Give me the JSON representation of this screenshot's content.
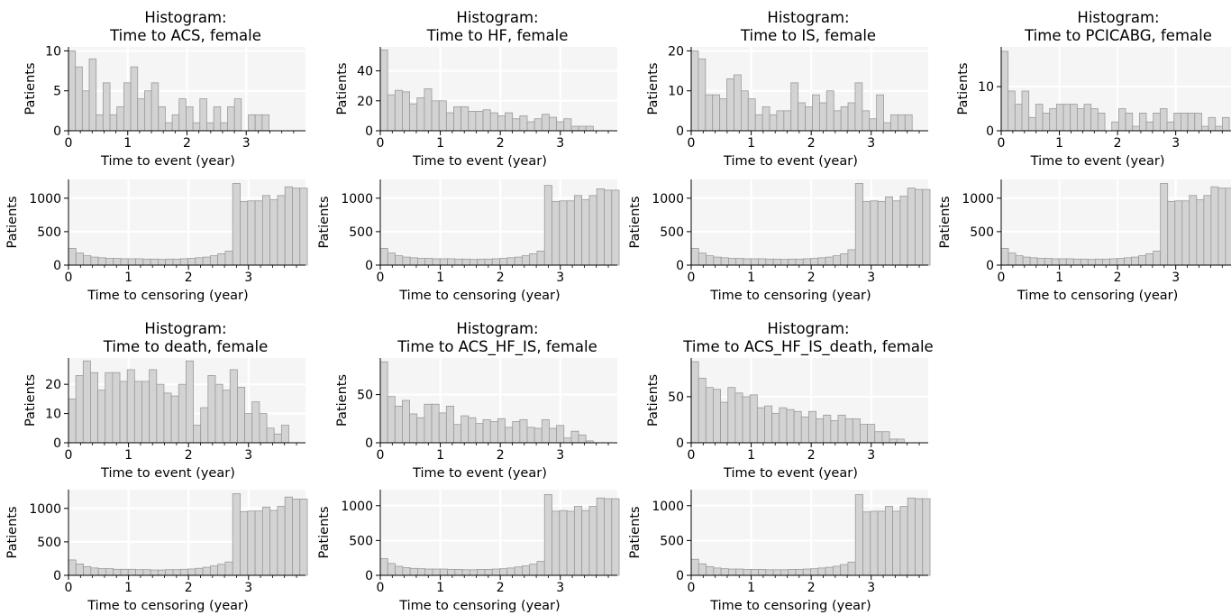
{
  "chart_data": [
    {
      "type": "bar",
      "title_line1": "Histogram:",
      "title_line2": "Time to ACS, female",
      "xlabel": "Time to event (year)",
      "ylabel": "Patients",
      "xlim": [
        0,
        4
      ],
      "ylim": [
        0,
        10.5
      ],
      "xticks": [
        "0",
        "1",
        "2",
        "3"
      ],
      "yticks": [
        "0",
        "5",
        "10"
      ],
      "bin_width": 0.1167,
      "values": [
        10,
        8,
        5,
        9,
        2,
        6,
        2,
        3,
        6,
        8,
        4,
        5,
        6,
        3,
        1,
        2,
        4,
        3,
        1,
        4,
        1,
        3,
        1,
        3,
        4,
        0,
        2,
        2,
        2,
        0,
        0,
        0,
        0,
        0
      ]
    },
    {
      "type": "bar",
      "title_line1": "",
      "title_line2": "",
      "xlabel": "Time to censoring (year)",
      "ylabel": "Patients",
      "xlim": [
        0,
        3.95
      ],
      "ylim": [
        0,
        1280
      ],
      "xticks": [
        "0",
        "1",
        "2",
        "3"
      ],
      "yticks": [
        "0",
        "500",
        "1000"
      ],
      "bin_width": 0.1244,
      "values": [
        250,
        180,
        140,
        120,
        110,
        100,
        100,
        95,
        95,
        95,
        90,
        90,
        85,
        90,
        90,
        95,
        100,
        110,
        120,
        140,
        170,
        210,
        1220,
        950,
        960,
        960,
        1040,
        980,
        1040,
        1170,
        1150,
        1150
      ]
    },
    {
      "type": "bar",
      "title_line1": "Histogram:",
      "title_line2": "Time to HF, female",
      "xlabel": "Time to event (year)",
      "ylabel": "Patients",
      "xlim": [
        0,
        3.95
      ],
      "ylim": [
        0,
        56
      ],
      "xticks": [
        "0",
        "1",
        "2",
        "3"
      ],
      "yticks": [
        "0",
        "20",
        "40"
      ],
      "bin_width": 0.1224,
      "values": [
        54,
        24,
        27,
        26,
        18,
        22,
        28,
        20,
        20,
        12,
        16,
        16,
        13,
        13,
        14,
        12,
        10,
        12,
        8,
        10,
        6,
        8,
        11,
        9,
        6,
        8,
        3,
        3,
        3
      ]
    },
    {
      "type": "bar",
      "title_line1": "",
      "title_line2": "",
      "xlabel": "Time to censoring (year)",
      "ylabel": "Patients",
      "xlim": [
        0,
        3.95
      ],
      "ylim": [
        0,
        1280
      ],
      "xticks": [
        "0",
        "1",
        "2",
        "3"
      ],
      "yticks": [
        "0",
        "500",
        "1000"
      ],
      "bin_width": 0.1244,
      "values": [
        250,
        180,
        140,
        120,
        110,
        100,
        100,
        95,
        95,
        95,
        90,
        90,
        85,
        90,
        90,
        95,
        100,
        110,
        120,
        140,
        170,
        210,
        1190,
        950,
        960,
        960,
        1040,
        980,
        1040,
        1140,
        1120,
        1120
      ]
    },
    {
      "type": "bar",
      "title_line1": "Histogram:",
      "title_line2": "Time to IS, female",
      "xlabel": "Time to event (year)",
      "ylabel": "Patients",
      "xlim": [
        0,
        3.95
      ],
      "ylim": [
        0,
        21
      ],
      "xticks": [
        "0",
        "1",
        "2",
        "3"
      ],
      "yticks": [
        "0",
        "10",
        "20"
      ],
      "bin_width": 0.1188,
      "values": [
        20,
        18,
        9,
        9,
        8,
        13,
        14,
        10,
        8,
        4,
        6,
        4,
        5,
        5,
        12,
        7,
        6,
        9,
        7,
        10,
        5,
        6,
        7,
        12,
        5,
        3,
        9,
        2,
        4,
        4,
        4
      ]
    },
    {
      "type": "bar",
      "title_line1": "",
      "title_line2": "",
      "xlabel": "Time to censoring (year)",
      "ylabel": "Patients",
      "xlim": [
        0,
        3.95
      ],
      "ylim": [
        0,
        1280
      ],
      "xticks": [
        "0",
        "1",
        "2",
        "3"
      ],
      "yticks": [
        "0",
        "500",
        "1000"
      ],
      "bin_width": 0.1244,
      "values": [
        250,
        180,
        140,
        120,
        110,
        100,
        100,
        95,
        95,
        95,
        90,
        90,
        85,
        90,
        90,
        95,
        100,
        110,
        120,
        140,
        170,
        230,
        1220,
        950,
        960,
        950,
        1020,
        960,
        1030,
        1150,
        1130,
        1130
      ]
    },
    {
      "type": "bar",
      "title_line1": "Histogram:",
      "title_line2": "Time to PCICABG, female",
      "xlabel": "Time to event (year)",
      "ylabel": "Patients",
      "xlim": [
        0,
        3.95
      ],
      "ylim": [
        0,
        19
      ],
      "xticks": [
        "0",
        "1",
        "2",
        "3"
      ],
      "yticks": [
        "0",
        "10"
      ],
      "bin_width": 0.1188,
      "values": [
        18,
        9,
        6,
        9,
        3,
        6,
        4,
        5,
        6,
        6,
        6,
        5,
        6,
        5,
        4,
        0,
        2,
        5,
        4,
        1,
        4,
        2,
        4,
        5,
        2,
        4,
        4,
        4,
        4,
        1,
        3,
        1,
        3
      ]
    },
    {
      "type": "bar",
      "title_line1": "",
      "title_line2": "",
      "xlabel": "Time to censoring (year)",
      "ylabel": "Patients",
      "xlim": [
        0,
        3.95
      ],
      "ylim": [
        0,
        1280
      ],
      "xticks": [
        "0",
        "1",
        "2",
        "3"
      ],
      "yticks": [
        "0",
        "500",
        "1000"
      ],
      "bin_width": 0.1244,
      "values": [
        250,
        180,
        140,
        120,
        110,
        100,
        100,
        95,
        95,
        95,
        90,
        90,
        85,
        90,
        90,
        95,
        100,
        110,
        120,
        140,
        170,
        210,
        1220,
        950,
        960,
        960,
        1040,
        980,
        1040,
        1170,
        1150,
        1150
      ]
    },
    {
      "type": "bar",
      "title_line1": "Histogram:",
      "title_line2": "Time to death, female",
      "xlabel": "Time to event (year)",
      "ylabel": "Patients",
      "xlim": [
        0,
        3.95
      ],
      "ylim": [
        0,
        29
      ],
      "xticks": [
        "0",
        "1",
        "2",
        "3"
      ],
      "yticks": [
        "0",
        "10",
        "20"
      ],
      "bin_width": 0.1224,
      "values": [
        15,
        23,
        28,
        24,
        18,
        24,
        24,
        21,
        25,
        21,
        21,
        25,
        20,
        17,
        16,
        20,
        28,
        6,
        12,
        23,
        20,
        18,
        25,
        19,
        10,
        14,
        10,
        5,
        3,
        6
      ]
    },
    {
      "type": "bar",
      "title_line1": "",
      "title_line2": "",
      "xlabel": "Time to censoring (year)",
      "ylabel": "Patients",
      "xlim": [
        0,
        3.95
      ],
      "ylim": [
        0,
        1280
      ],
      "xticks": [
        "0",
        "1",
        "2",
        "3"
      ],
      "yticks": [
        "0",
        "500",
        "1000"
      ],
      "bin_width": 0.1244,
      "values": [
        230,
        170,
        130,
        110,
        100,
        100,
        90,
        90,
        90,
        85,
        85,
        80,
        80,
        85,
        85,
        90,
        95,
        105,
        120,
        140,
        165,
        200,
        1220,
        950,
        960,
        960,
        1020,
        970,
        1030,
        1170,
        1140,
        1140
      ]
    },
    {
      "type": "bar",
      "title_line1": "Histogram:",
      "title_line2": "Time to ACS_HF_IS, female",
      "xlabel": "Time to event (year)",
      "ylabel": "Patients",
      "xlim": [
        0,
        3.95
      ],
      "ylim": [
        0,
        88
      ],
      "xticks": [
        "0",
        "1",
        "2",
        "3"
      ],
      "yticks": [
        "0",
        "50"
      ],
      "bin_width": 0.1224,
      "values": [
        84,
        48,
        38,
        44,
        30,
        26,
        40,
        40,
        31,
        38,
        19,
        28,
        26,
        20,
        24,
        22,
        25,
        16,
        22,
        24,
        16,
        15,
        24,
        15,
        18,
        5,
        12,
        8,
        2
      ]
    },
    {
      "type": "bar",
      "title_line1": "",
      "title_line2": "",
      "xlabel": "Time to censoring (year)",
      "ylabel": "Patients",
      "xlim": [
        0,
        3.95
      ],
      "ylim": [
        0,
        1230
      ],
      "xticks": [
        "0",
        "1",
        "2",
        "3"
      ],
      "yticks": [
        "0",
        "500",
        "1000"
      ],
      "bin_width": 0.1244,
      "values": [
        240,
        170,
        130,
        110,
        100,
        95,
        90,
        90,
        90,
        85,
        85,
        80,
        80,
        85,
        85,
        90,
        95,
        105,
        120,
        135,
        160,
        200,
        1160,
        920,
        930,
        920,
        990,
        930,
        990,
        1110,
        1100,
        1100
      ]
    },
    {
      "type": "bar",
      "title_line1": "Histogram:",
      "title_line2": "Time to ACS_HF_IS_death, female",
      "xlabel": "Time to event (year)",
      "ylabel": "Patients",
      "xlim": [
        0,
        3.95
      ],
      "ylim": [
        0,
        92
      ],
      "xticks": [
        "0",
        "1",
        "2",
        "3"
      ],
      "yticks": [
        "0",
        "50"
      ],
      "bin_width": 0.1224,
      "values": [
        88,
        70,
        60,
        58,
        44,
        60,
        54,
        50,
        52,
        38,
        40,
        32,
        38,
        36,
        34,
        28,
        34,
        26,
        30,
        24,
        30,
        26,
        26,
        20,
        20,
        12,
        12,
        4,
        4
      ]
    },
    {
      "type": "bar",
      "title_line1": "",
      "title_line2": "",
      "xlabel": "Time to censoring (year)",
      "ylabel": "Patients",
      "xlim": [
        0,
        3.95
      ],
      "ylim": [
        0,
        1230
      ],
      "xticks": [
        "0",
        "1",
        "2",
        "3"
      ],
      "yticks": [
        "0",
        "500",
        "1000"
      ],
      "bin_width": 0.1244,
      "values": [
        230,
        165,
        125,
        105,
        95,
        90,
        90,
        85,
        85,
        85,
        80,
        80,
        80,
        85,
        85,
        90,
        95,
        105,
        115,
        130,
        155,
        190,
        1160,
        910,
        920,
        920,
        990,
        920,
        990,
        1110,
        1100,
        1100
      ]
    }
  ]
}
